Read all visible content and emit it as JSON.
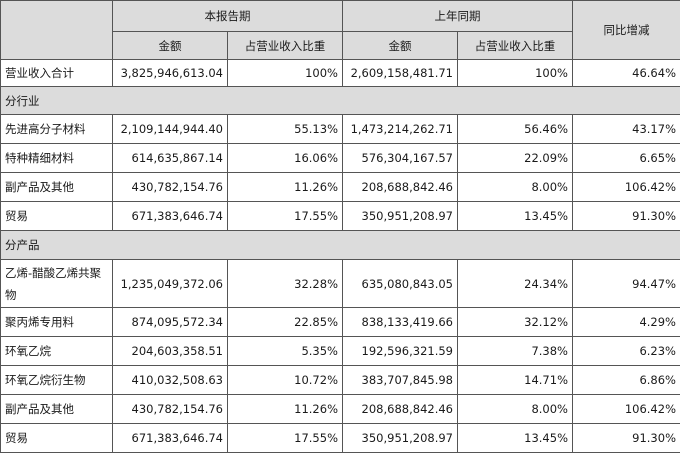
{
  "headers": {
    "current_period": "本报告期",
    "prior_period": "上年同期",
    "yoy": "同比增减",
    "amount": "金额",
    "ratio": "占营业收入比重"
  },
  "total": {
    "label": "营业收入合计",
    "cur": "3,825,946,613.04",
    "cur_pct": "100%",
    "prev": "2,609,158,481.71",
    "prev_pct": "100%",
    "yoy": "46.64%"
  },
  "section_industry": "分行业",
  "industry_rows": [
    {
      "label": "先进高分子材料",
      "cur": "2,109,144,944.40",
      "cur_pct": "55.13%",
      "prev": "1,473,214,262.71",
      "prev_pct": "56.46%",
      "yoy": "43.17%"
    },
    {
      "label": "特种精细材料",
      "cur": "614,635,867.14",
      "cur_pct": "16.06%",
      "prev": "576,304,167.57",
      "prev_pct": "22.09%",
      "yoy": "6.65%"
    },
    {
      "label": "副产品及其他",
      "cur": "430,782,154.76",
      "cur_pct": "11.26%",
      "prev": "208,688,842.46",
      "prev_pct": "8.00%",
      "yoy": "106.42%"
    },
    {
      "label": "贸易",
      "cur": "671,383,646.74",
      "cur_pct": "17.55%",
      "prev": "350,951,208.97",
      "prev_pct": "13.45%",
      "yoy": "91.30%"
    }
  ],
  "section_product": "分产品",
  "product_rows": [
    {
      "label": "乙烯-醋酸乙烯共聚物",
      "cur": "1,235,049,372.06",
      "cur_pct": "32.28%",
      "prev": "635,080,843.05",
      "prev_pct": "24.34%",
      "yoy": "94.47%"
    },
    {
      "label": "聚丙烯专用料",
      "cur": "874,095,572.34",
      "cur_pct": "22.85%",
      "prev": "838,133,419.66",
      "prev_pct": "32.12%",
      "yoy": "4.29%"
    },
    {
      "label": "环氧乙烷",
      "cur": "204,603,358.51",
      "cur_pct": "5.35%",
      "prev": "192,596,321.59",
      "prev_pct": "7.38%",
      "yoy": "6.23%"
    },
    {
      "label": "环氧乙烷衍生物",
      "cur": "410,032,508.63",
      "cur_pct": "10.72%",
      "prev": "383,707,845.98",
      "prev_pct": "14.71%",
      "yoy": "6.86%"
    },
    {
      "label": "副产品及其他",
      "cur": "430,782,154.76",
      "cur_pct": "11.26%",
      "prev": "208,688,842.46",
      "prev_pct": "8.00%",
      "yoy": "106.42%"
    },
    {
      "label": "贸易",
      "cur": "671,383,646.74",
      "cur_pct": "17.55%",
      "prev": "350,951,208.97",
      "prev_pct": "13.45%",
      "yoy": "91.30%"
    }
  ]
}
